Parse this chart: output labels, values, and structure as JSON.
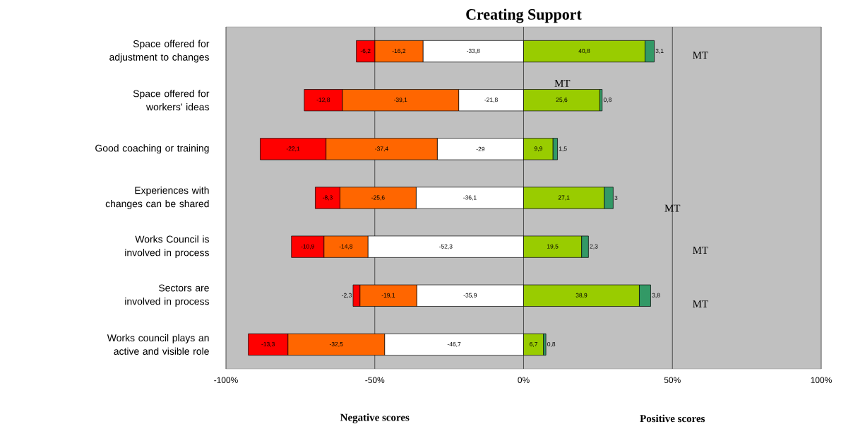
{
  "chart_data": {
    "type": "bar",
    "orientation": "horizontal",
    "stacked": true,
    "title": "Creating Support",
    "categories": [
      "Space offered for adjustment to changes",
      "Space offered for workers' ideas",
      "Good coaching or training",
      "Experiences with changes can be shared",
      "Works Council is involved in process",
      "Sectors are involved in process",
      "Works council plays an active and visible role"
    ],
    "series": [
      {
        "color": "#ffffff",
        "values": [
          -33.8,
          -21.8,
          -29,
          -36.1,
          -52.3,
          -35.9,
          -46.7
        ],
        "value_labels": [
          "-33,8",
          "-21,8",
          "-29",
          "-36,1",
          "-52,3",
          "-35,9",
          "-46,7"
        ]
      },
      {
        "color": "#ff6600",
        "values": [
          -16.2,
          -39.1,
          -37.4,
          -25.6,
          -14.8,
          -19.1,
          -32.5
        ],
        "value_labels": [
          "-16,2",
          "-39,1",
          "-37,4",
          "-25,6",
          "-14,8",
          "-19,1",
          "-32,5"
        ]
      },
      {
        "color": "#ff0000",
        "values": [
          -6.2,
          -12.8,
          -22.1,
          -8.3,
          -10.9,
          -2.3,
          -13.3
        ],
        "value_labels": [
          "-6,2",
          "-12,8",
          "-22,1",
          "-8,3",
          "-10,9",
          "-2,3",
          "-13,3"
        ]
      },
      {
        "color": "#99cc00",
        "values": [
          40.8,
          25.6,
          9.9,
          27.1,
          19.5,
          38.9,
          6.7
        ],
        "value_labels": [
          "40,8",
          "25,6",
          "9,9",
          "27,1",
          "19,5",
          "38,9",
          "6,7"
        ]
      },
      {
        "color": "#339966",
        "values": [
          3.1,
          0.8,
          1.5,
          3,
          2.3,
          3.8,
          0.8
        ],
        "value_labels": [
          "3,1",
          "0,8",
          "1,5",
          "3",
          "2,3",
          "3,8",
          "0,8"
        ]
      }
    ],
    "xlim": [
      -100,
      100
    ],
    "xticks": [
      {
        "value": -100,
        "label": "-100%"
      },
      {
        "value": -50,
        "label": "-50%"
      },
      {
        "value": 0,
        "label": "0%"
      },
      {
        "value": 50,
        "label": "50%"
      },
      {
        "value": 100,
        "label": "100%"
      }
    ],
    "grid": "x",
    "annotations": [
      "MT",
      "MT",
      "MT",
      "MT",
      "MT",
      "Negative scores",
      "Positive scores"
    ]
  }
}
